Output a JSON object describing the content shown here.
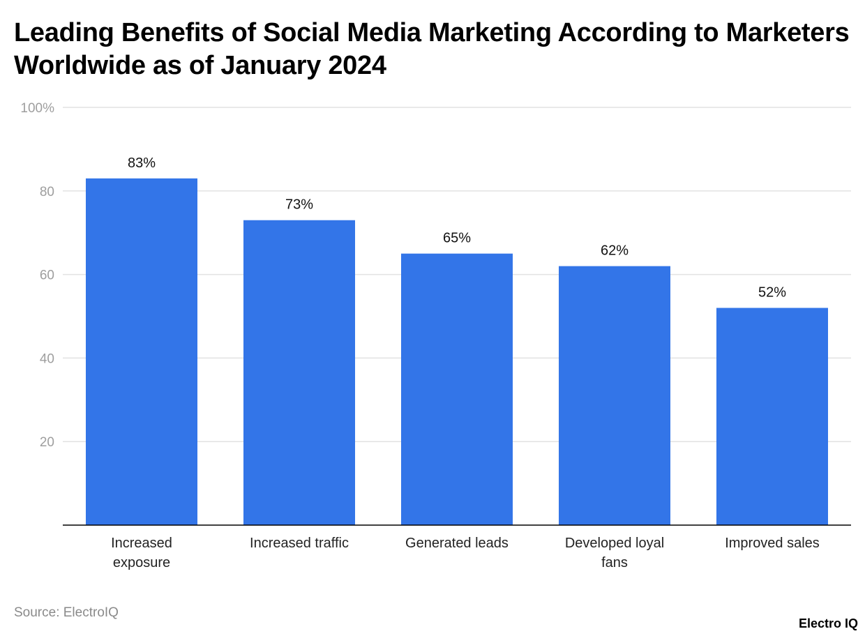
{
  "chart_data": {
    "type": "bar",
    "title": "Leading Benefits of Social Media Marketing According to Marketers Worldwide as of January 2024",
    "categories": [
      [
        "Increased",
        "exposure"
      ],
      [
        "Increased traffic"
      ],
      [
        "Generated leads"
      ],
      [
        "Developed loyal",
        "fans"
      ],
      [
        "Improved sales"
      ]
    ],
    "values": [
      83,
      73,
      65,
      62,
      52
    ],
    "data_labels": [
      "83%",
      "73%",
      "65%",
      "62%",
      "52%"
    ],
    "ylim": [
      0,
      100
    ],
    "yticks": [
      20,
      40,
      60,
      80,
      100
    ],
    "ytick_labels": [
      "20",
      "40",
      "60",
      "80",
      "100%"
    ],
    "grid": true,
    "bar_color": "#3375e8",
    "xlabel": "",
    "ylabel": ""
  },
  "source": "Source: ElectroIQ",
  "logo": "Electro IQ"
}
